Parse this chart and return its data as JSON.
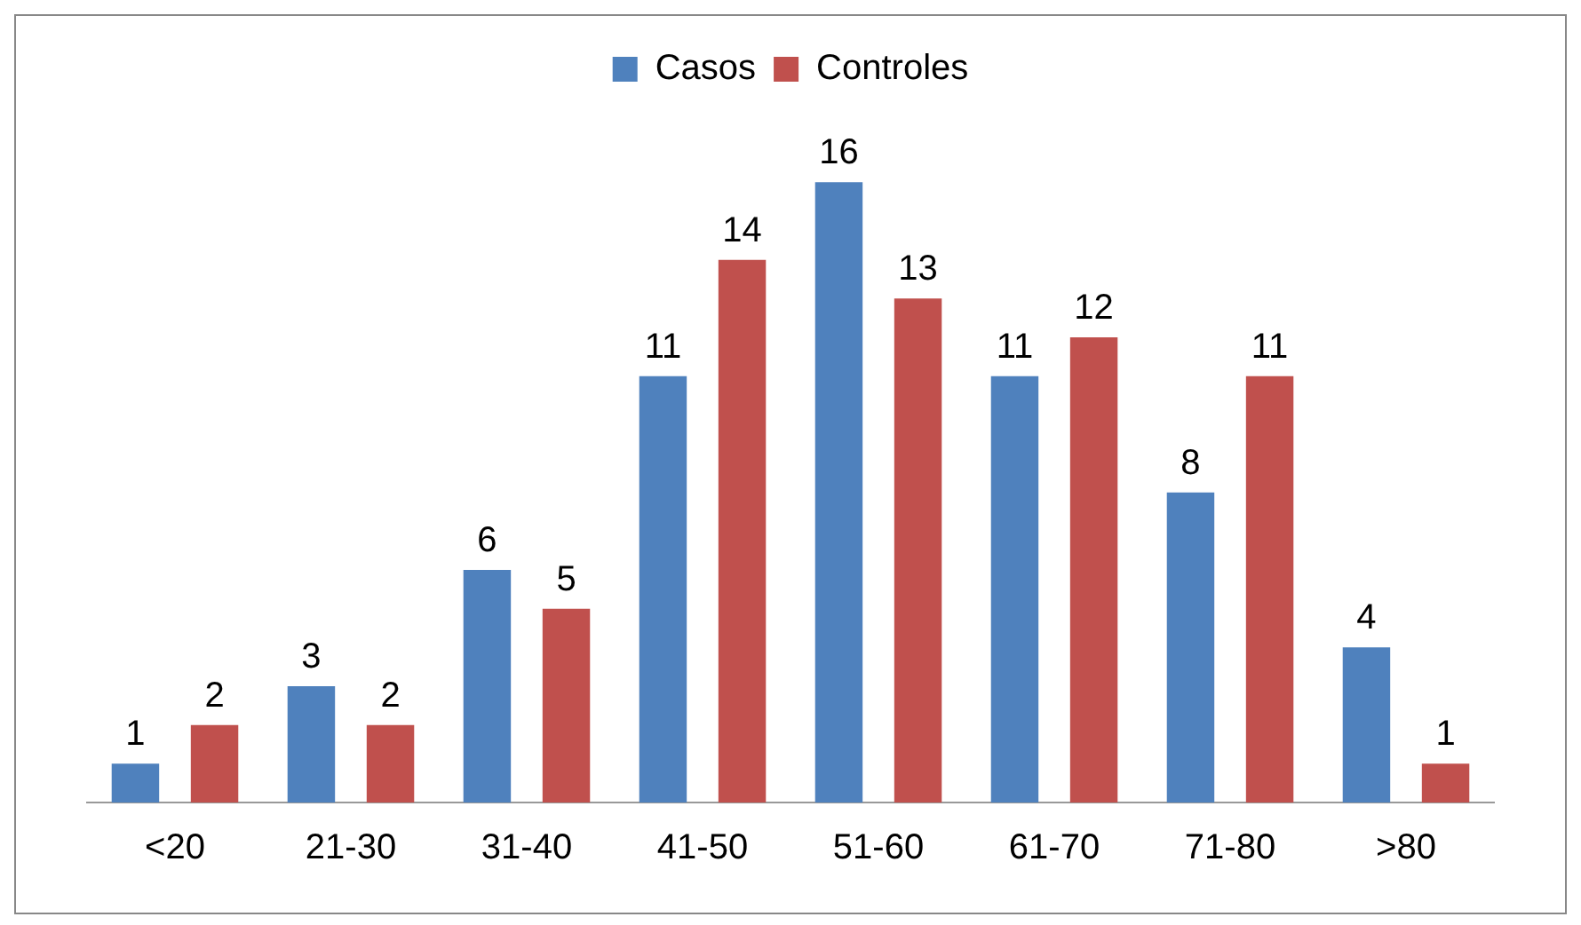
{
  "chart_data": {
    "type": "bar",
    "categories": [
      "<20",
      "21-30",
      "31-40",
      "41-50",
      "51-60",
      "61-70",
      "71-80",
      ">80"
    ],
    "series": [
      {
        "name": "Casos",
        "color": "#4f81bd",
        "values": [
          1,
          3,
          6,
          11,
          16,
          11,
          8,
          4
        ]
      },
      {
        "name": "Controles",
        "color": "#c0504d",
        "values": [
          2,
          2,
          5,
          14,
          13,
          12,
          11,
          1
        ]
      }
    ],
    "data_labels": true,
    "legend": "top",
    "grid": false,
    "tick_labels": "x"
  }
}
